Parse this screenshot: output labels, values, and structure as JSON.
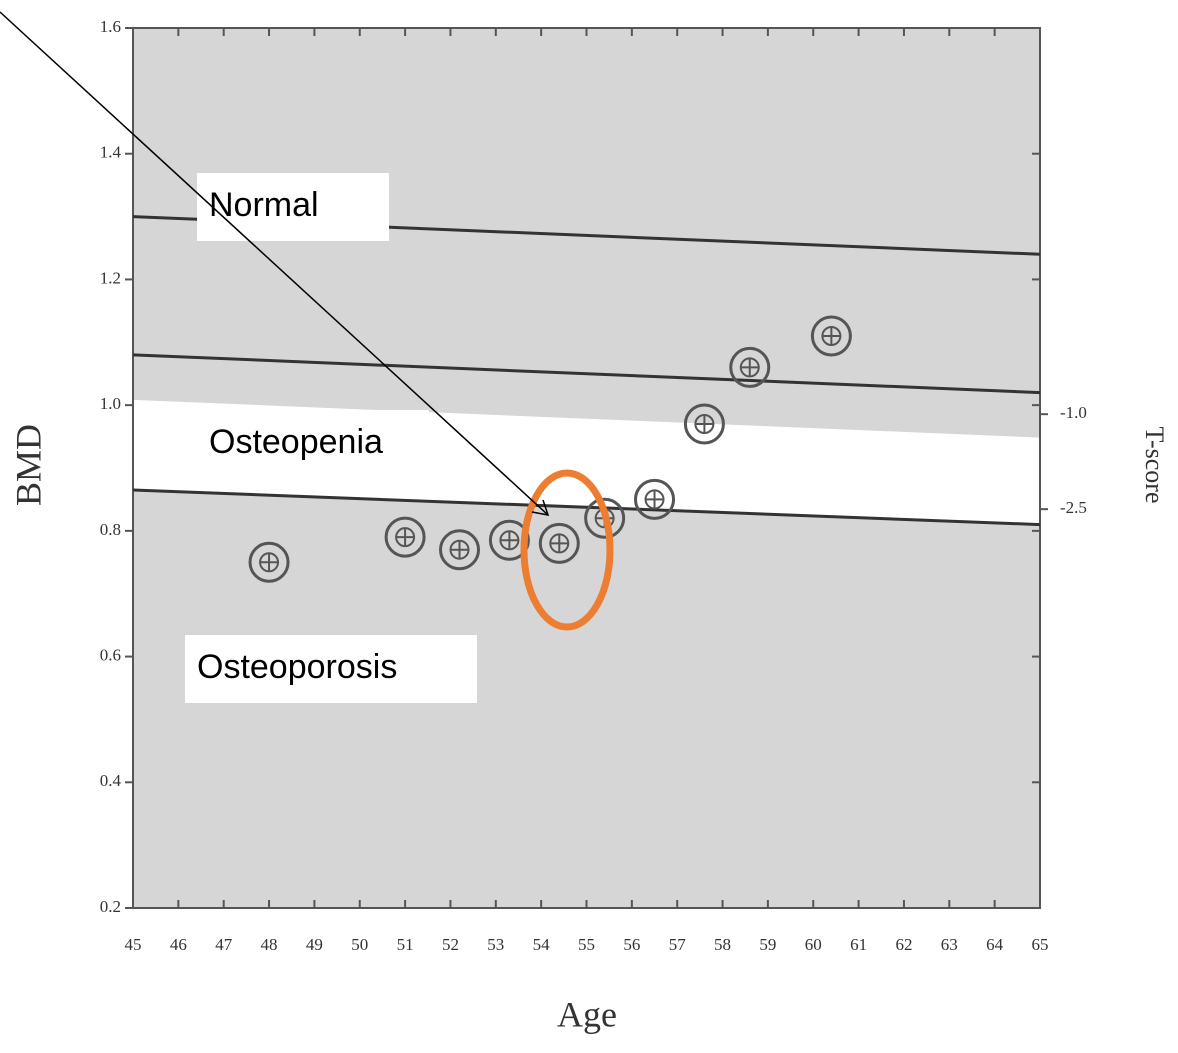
{
  "chart_data": {
    "type": "scatter",
    "xlabel": "Age",
    "ylabel": "BMD",
    "y2label": "T-score",
    "xlim": [
      45,
      65
    ],
    "xticks": [
      45,
      46,
      47,
      48,
      49,
      50,
      51,
      52,
      53,
      54,
      55,
      56,
      57,
      58,
      59,
      60,
      61,
      62,
      63,
      64,
      65
    ],
    "ylim": [
      0.2,
      1.6
    ],
    "yticks": [
      {
        "value": 0.2,
        "label": "0.2"
      },
      {
        "value": 0.4,
        "label": "0.4"
      },
      {
        "value": 0.6,
        "label": "0.6"
      },
      {
        "value": 0.8,
        "label": "0.8"
      },
      {
        "value": 1.0,
        "label": "1.0"
      },
      {
        "value": 1.2,
        "label": "1.2"
      },
      {
        "value": 1.4,
        "label": "1.4"
      },
      {
        "value": 1.6,
        "label": "1.6"
      }
    ],
    "y2lim": [
      -8.8,
      5.1
    ],
    "y2ticks": [
      {
        "value": -1.0,
        "label": "-1.0"
      },
      {
        "value": -2.5,
        "label": "-2.5"
      }
    ],
    "line_x": [
      45,
      65
    ],
    "reference_lines": [
      {
        "values": [
          1.3,
          1.24
        ]
      },
      {
        "values": [
          1.08,
          1.02
        ]
      },
      {
        "values": [
          0.865,
          0.81
        ]
      }
    ],
    "points": {
      "x": [
        48.0,
        51.0,
        52.2,
        53.3,
        54.4,
        55.4,
        56.5,
        57.6,
        58.6,
        60.4
      ],
      "y": [
        0.75,
        0.79,
        0.77,
        0.785,
        0.78,
        0.82,
        0.85,
        0.97,
        1.06,
        1.11
      ]
    },
    "annotations": [
      "Normal",
      "Osteopenia",
      "Osteoporosis"
    ],
    "colors": {
      "background": "#d6d6d6",
      "band": "#ffffff",
      "marker": "#555555",
      "highlight": "#ed7d31"
    }
  }
}
